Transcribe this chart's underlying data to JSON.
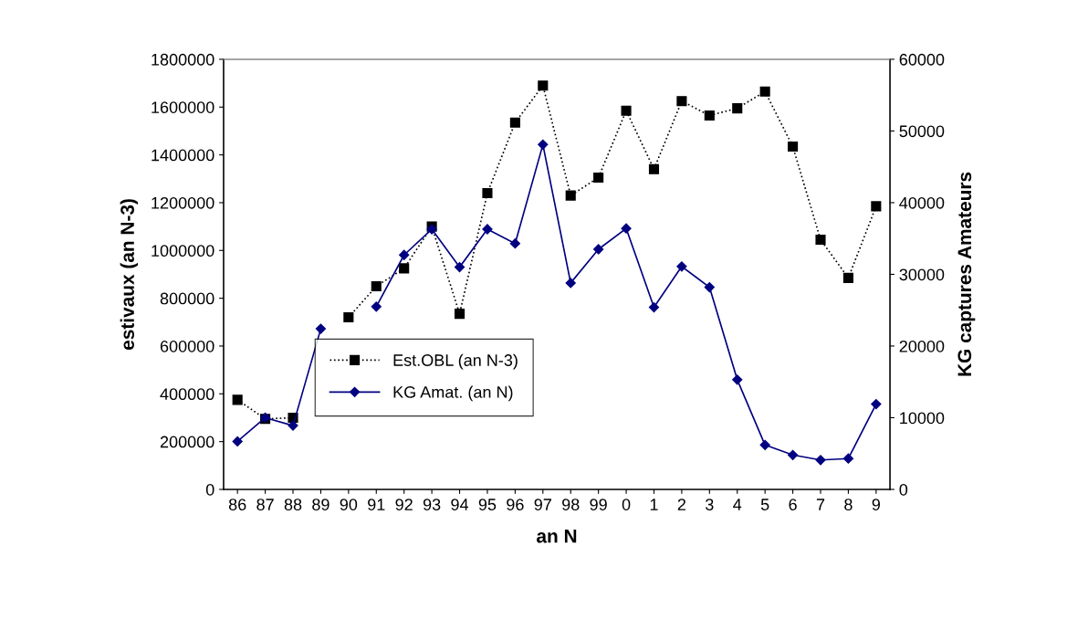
{
  "chart_data": {
    "type": "line",
    "xlabel": "an N",
    "ylabel": "estivaux (an N-3)",
    "y2label": "KG captures Amateurs",
    "categories": [
      "86",
      "87",
      "88",
      "89",
      "90",
      "91",
      "92",
      "93",
      "94",
      "95",
      "96",
      "97",
      "98",
      "99",
      "0",
      "1",
      "2",
      "3",
      "4",
      "5",
      "6",
      "7",
      "8",
      "9"
    ],
    "series": [
      {
        "name": "Est.OBL (an N-3)",
        "color": "#000000",
        "marker": "square",
        "line_style": "dotted",
        "values": [
          375000,
          295000,
          300000,
          null,
          720000,
          850000,
          925000,
          1100000,
          735000,
          1240000,
          1535000,
          1690000,
          1230000,
          1305000,
          1585000,
          1340000,
          1625000,
          1565000,
          1595000,
          1665000,
          1435000,
          1045000,
          885000,
          1185000
        ]
      },
      {
        "name": "KG Amat. (an N)",
        "color": "#000080",
        "marker": "diamond",
        "line_style": "solid",
        "axis": "y2",
        "values": [
          6700,
          10000,
          8900,
          22400,
          null,
          25500,
          32700,
          36300,
          31000,
          36300,
          34300,
          48100,
          28800,
          33500,
          36400,
          25400,
          31100,
          28200,
          15300,
          6200,
          4800,
          4100,
          4300,
          11900
        ]
      }
    ],
    "ylim": [
      0,
      1800000
    ],
    "yticks": [
      0,
      200000,
      400000,
      600000,
      800000,
      1000000,
      1200000,
      1400000,
      1600000,
      1800000
    ],
    "y2lim": [
      0,
      60000
    ],
    "y2ticks": [
      0,
      10000,
      20000,
      30000,
      40000,
      50000,
      60000
    ],
    "grid": false,
    "legend": "center left"
  }
}
